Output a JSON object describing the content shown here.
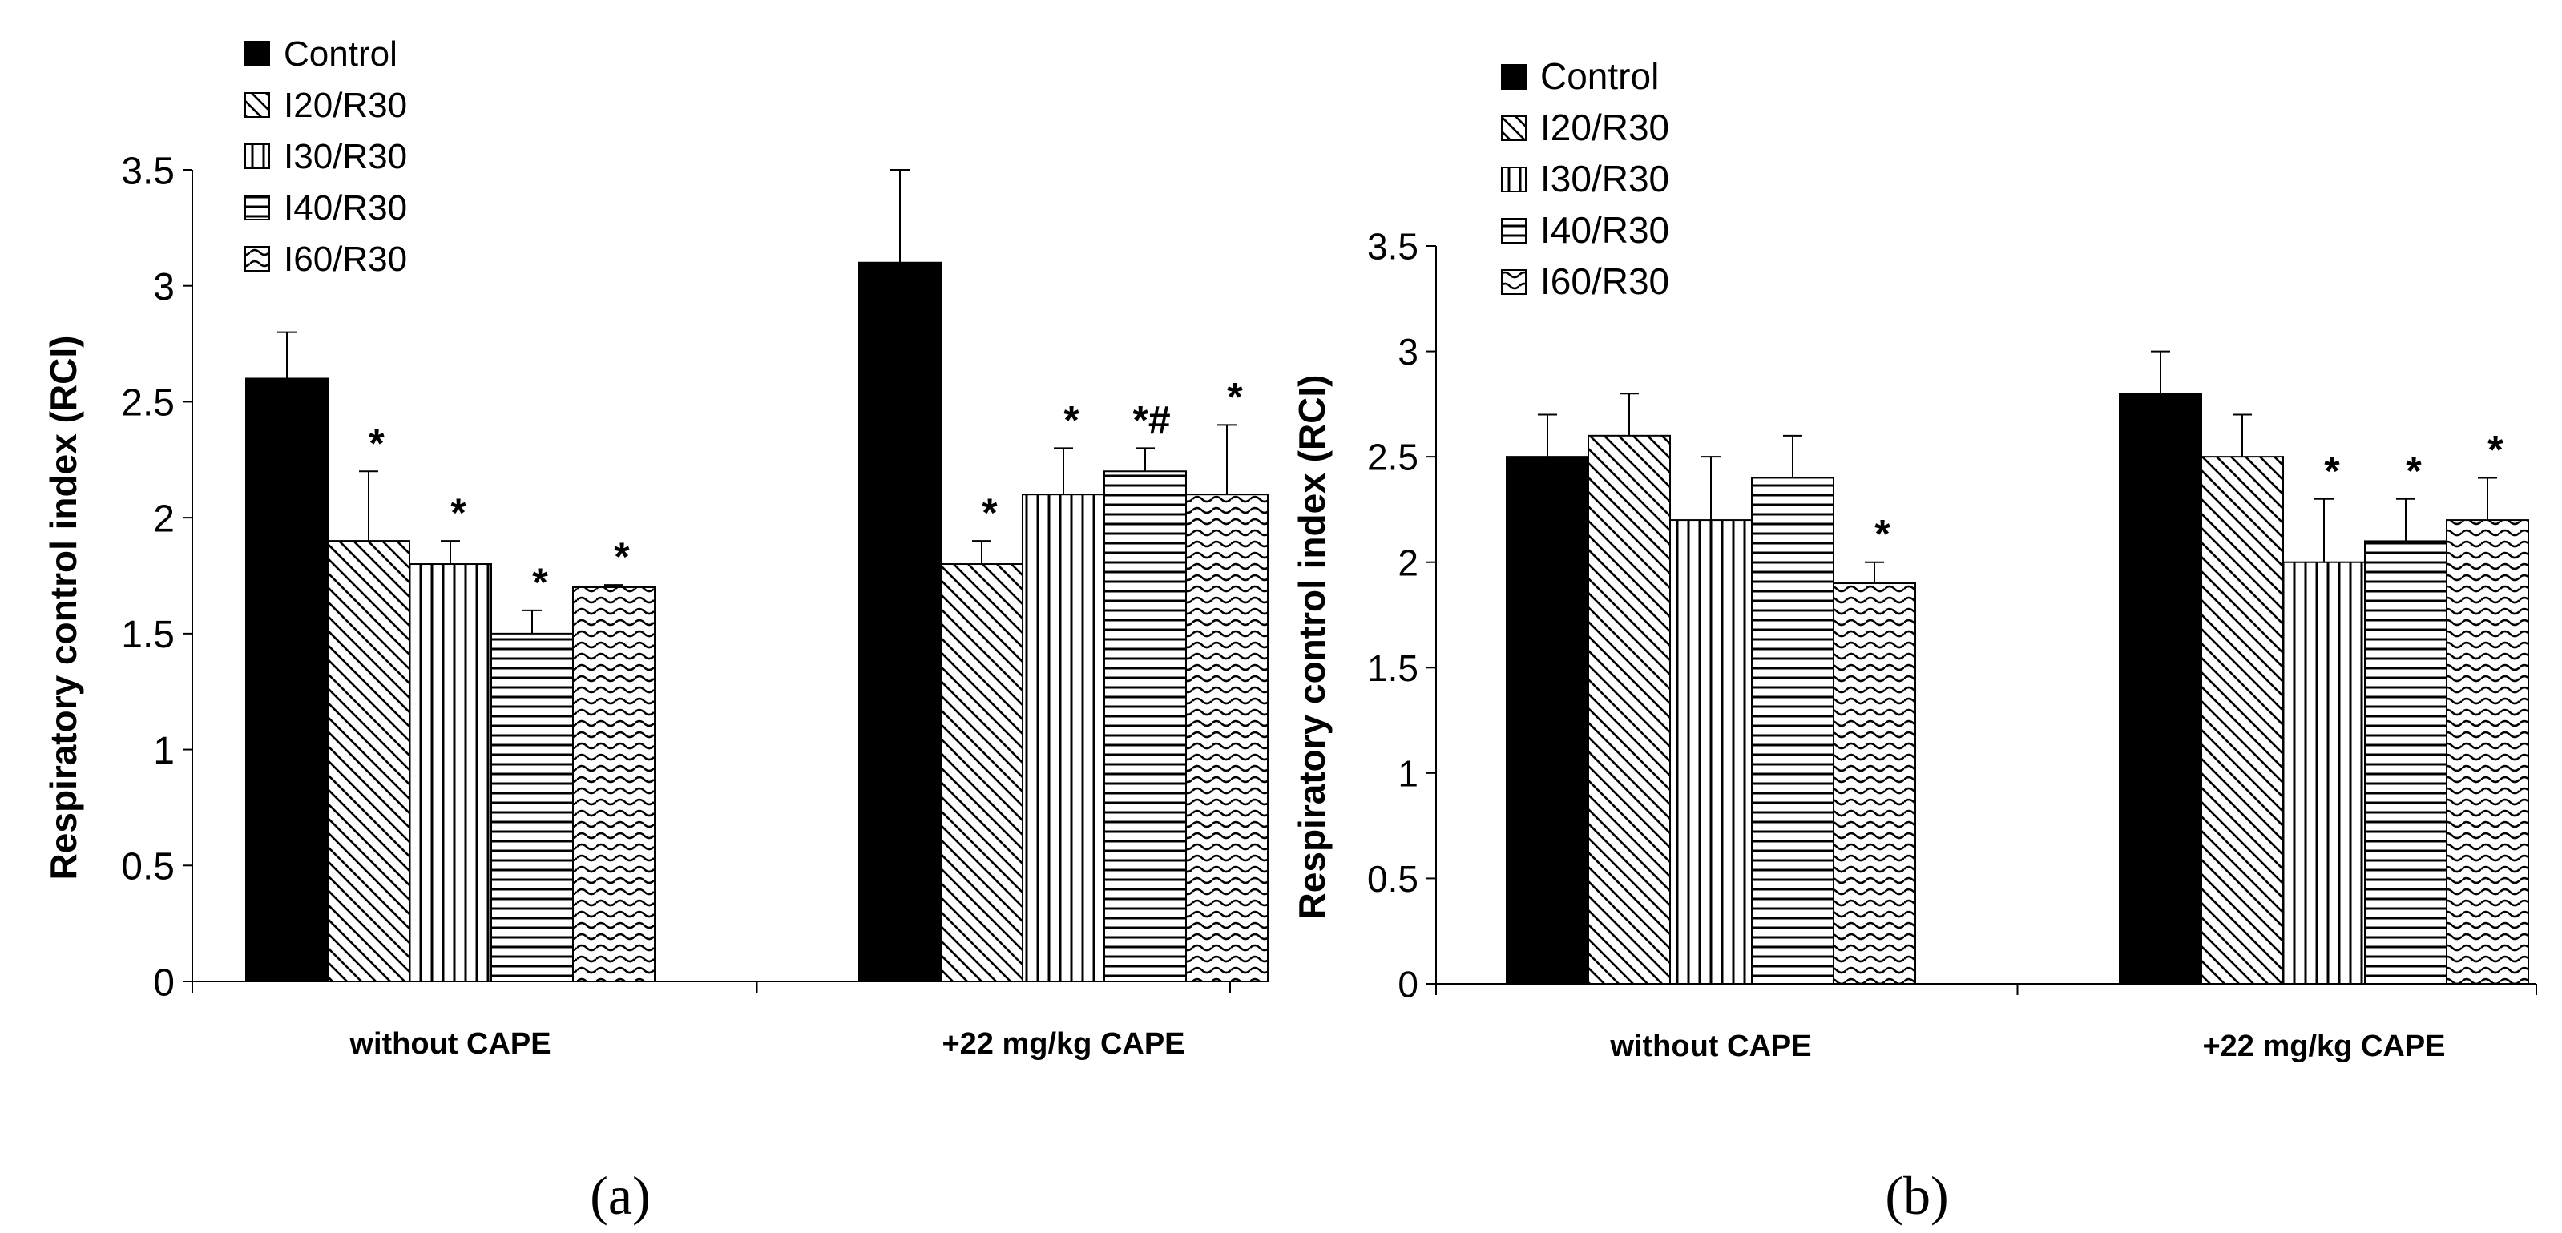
{
  "chart_data": [
    {
      "type": "bar",
      "panel_label": "a",
      "ylabel": "Respiratory control index (RCI)",
      "xlabel": "",
      "ylim": [
        0,
        3.5
      ],
      "yticks": [
        "0",
        "0.5",
        "1",
        "1.5",
        "2",
        "2.5",
        "3",
        "3.5"
      ],
      "categories": [
        "without CAPE",
        "+22 mg/kg CAPE"
      ],
      "legend_position": "top-left",
      "series": [
        {
          "name": "Control",
          "pattern": "solid",
          "values": [
            2.6,
            3.1
          ],
          "errors": [
            0.2,
            0.4
          ],
          "annotations": [
            "",
            ""
          ]
        },
        {
          "name": "I20/R30",
          "pattern": "diag-down",
          "values": [
            1.9,
            1.8
          ],
          "errors": [
            0.3,
            0.1
          ],
          "annotations": [
            "*",
            "*"
          ]
        },
        {
          "name": "I30/R30",
          "pattern": "vertical",
          "values": [
            1.8,
            2.1
          ],
          "errors": [
            0.1,
            0.2
          ],
          "annotations": [
            "*",
            "*"
          ]
        },
        {
          "name": "I40/R30",
          "pattern": "horizontal",
          "values": [
            1.5,
            2.2
          ],
          "errors": [
            0.1,
            0.1
          ],
          "annotations": [
            "*",
            "*#"
          ]
        },
        {
          "name": "I60/R30",
          "pattern": "wave",
          "values": [
            1.7,
            2.1
          ],
          "errors": [
            0.01,
            0.3
          ],
          "annotations": [
            "*",
            "*"
          ]
        }
      ]
    },
    {
      "type": "bar",
      "panel_label": "b",
      "ylabel": "Respiratory control index (RCI)",
      "xlabel": "",
      "ylim": [
        0,
        3.5
      ],
      "yticks": [
        "0",
        "0.5",
        "1",
        "1.5",
        "2",
        "2.5",
        "3",
        "3.5"
      ],
      "categories": [
        "without CAPE",
        "+22 mg/kg CAPE"
      ],
      "legend_position": "top-left",
      "series": [
        {
          "name": "Control",
          "pattern": "solid",
          "values": [
            2.5,
            2.8
          ],
          "errors": [
            0.2,
            0.2
          ],
          "annotations": [
            "",
            ""
          ]
        },
        {
          "name": "I20/R30",
          "pattern": "diag-down",
          "values": [
            2.6,
            2.5
          ],
          "errors": [
            0.2,
            0.2
          ],
          "annotations": [
            "",
            ""
          ]
        },
        {
          "name": "I30/R30",
          "pattern": "vertical",
          "values": [
            2.2,
            2.0
          ],
          "errors": [
            0.3,
            0.3
          ],
          "annotations": [
            "",
            "*"
          ]
        },
        {
          "name": "I40/R30",
          "pattern": "horizontal",
          "values": [
            2.4,
            2.1
          ],
          "errors": [
            0.2,
            0.2
          ],
          "annotations": [
            "",
            "*"
          ]
        },
        {
          "name": "I60/R30",
          "pattern": "wave",
          "values": [
            1.9,
            2.2
          ],
          "errors": [
            0.1,
            0.2
          ],
          "annotations": [
            "*",
            "*"
          ]
        }
      ]
    }
  ],
  "panel_labels": [
    "(a)",
    "(b)"
  ],
  "colors": {
    "bar_stroke": "#000000",
    "background": "#ffffff",
    "text": "#000000"
  }
}
